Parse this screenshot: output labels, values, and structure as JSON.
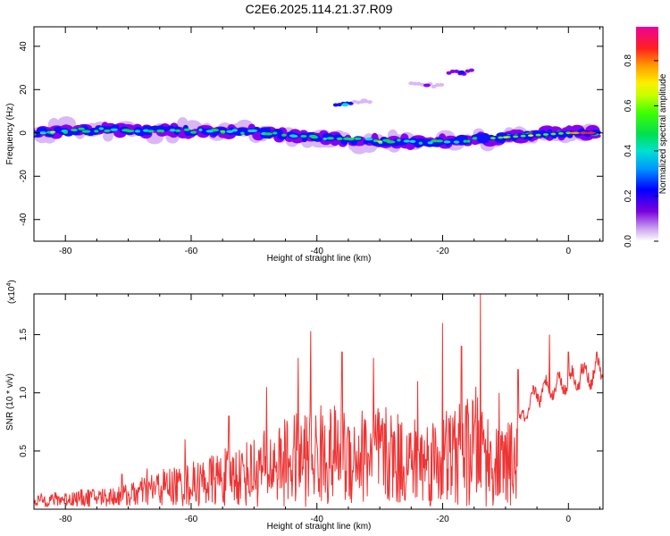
{
  "title": "C2E6.2025.114.21.37.R09",
  "chart_data": [
    {
      "type": "heatmap",
      "name": "spectrogram",
      "xlabel": "Height of straight line (km)",
      "ylabel": "Frequency (Hz)",
      "xlim": [
        -85,
        5.5
      ],
      "ylim": [
        -50,
        49
      ],
      "xticks": [
        -80,
        -60,
        -40,
        -20,
        0
      ],
      "yticks": [
        -40,
        -20,
        0,
        20,
        40
      ],
      "ridge": [
        [
          -85,
          0
        ],
        [
          -75,
          1.5
        ],
        [
          -60,
          1
        ],
        [
          -50,
          0.5
        ],
        [
          -40,
          -2
        ],
        [
          -30,
          -4
        ],
        [
          -20,
          -4
        ],
        [
          -10,
          -2
        ],
        [
          -5,
          -1
        ],
        [
          0,
          0
        ],
        [
          4.5,
          0
        ]
      ],
      "features": [
        {
          "x": [
            -37,
            -34
          ],
          "y": 13,
          "level": 0.45
        },
        {
          "x": [
            -34,
            -31
          ],
          "y": 15,
          "level": 0.1
        },
        {
          "x": [
            -25,
            -20
          ],
          "y": 22,
          "level": 0.15
        },
        {
          "x": [
            -19,
            -15
          ],
          "y": 28,
          "level": 0.25
        }
      ],
      "colorbar": {
        "label": "Normalized spectral amplitude",
        "range": [
          0,
          0.95
        ],
        "ticks": [
          0.0,
          0.2,
          0.4,
          0.6,
          0.8
        ],
        "tick_labels": [
          "0.0",
          "0.2",
          "0.4",
          "0.6",
          "0.8"
        ]
      }
    },
    {
      "type": "line",
      "name": "snr",
      "xlabel": "Height of straight line (km)",
      "ylabel": "SNR (10 * v/v)",
      "exponent_label": "(x10",
      "exponent": "4",
      "exponent_close": ")",
      "xlim": [
        -85,
        5.5
      ],
      "ylim": [
        0,
        1.85
      ],
      "xticks": [
        -80,
        -60,
        -40,
        -20,
        0
      ],
      "yticks": [
        0.5,
        1.0,
        1.5
      ],
      "ytick_labels": [
        "0.5",
        "1.0",
        "1.5"
      ],
      "color": "#ee3333",
      "envelope": [
        [
          -85,
          0.1
        ],
        [
          -75,
          0.15
        ],
        [
          -70,
          0.18
        ],
        [
          -65,
          0.3
        ],
        [
          -60,
          0.35
        ],
        [
          -55,
          0.45
        ],
        [
          -50,
          0.55
        ],
        [
          -45,
          0.7
        ],
        [
          -40,
          0.8
        ],
        [
          -35,
          0.8
        ],
        [
          -30,
          0.8
        ],
        [
          -25,
          0.7
        ],
        [
          -20,
          0.75
        ],
        [
          -16,
          0.85
        ],
        [
          -14,
          1.0
        ],
        [
          -12,
          0.6
        ],
        [
          -8,
          0.7
        ],
        [
          -5,
          1.0
        ],
        [
          0,
          1.1
        ],
        [
          3,
          1.15
        ],
        [
          5.5,
          1.2
        ]
      ],
      "peaks": [
        [
          -71,
          0.3
        ],
        [
          -67,
          0.35
        ],
        [
          -61,
          0.6
        ],
        [
          -54,
          0.8
        ],
        [
          -48,
          1.05
        ],
        [
          -43,
          1.3
        ],
        [
          -41,
          1.53
        ],
        [
          -36,
          1.35
        ],
        [
          -31,
          1.3
        ],
        [
          -24,
          1.1
        ],
        [
          -20,
          1.6
        ],
        [
          -17,
          1.4
        ],
        [
          -14,
          1.85
        ],
        [
          -11,
          1.0
        ],
        [
          -8,
          1.2
        ],
        [
          -3,
          1.5
        ],
        [
          0,
          1.35
        ],
        [
          2,
          1.25
        ],
        [
          4.5,
          1.35
        ]
      ]
    }
  ]
}
